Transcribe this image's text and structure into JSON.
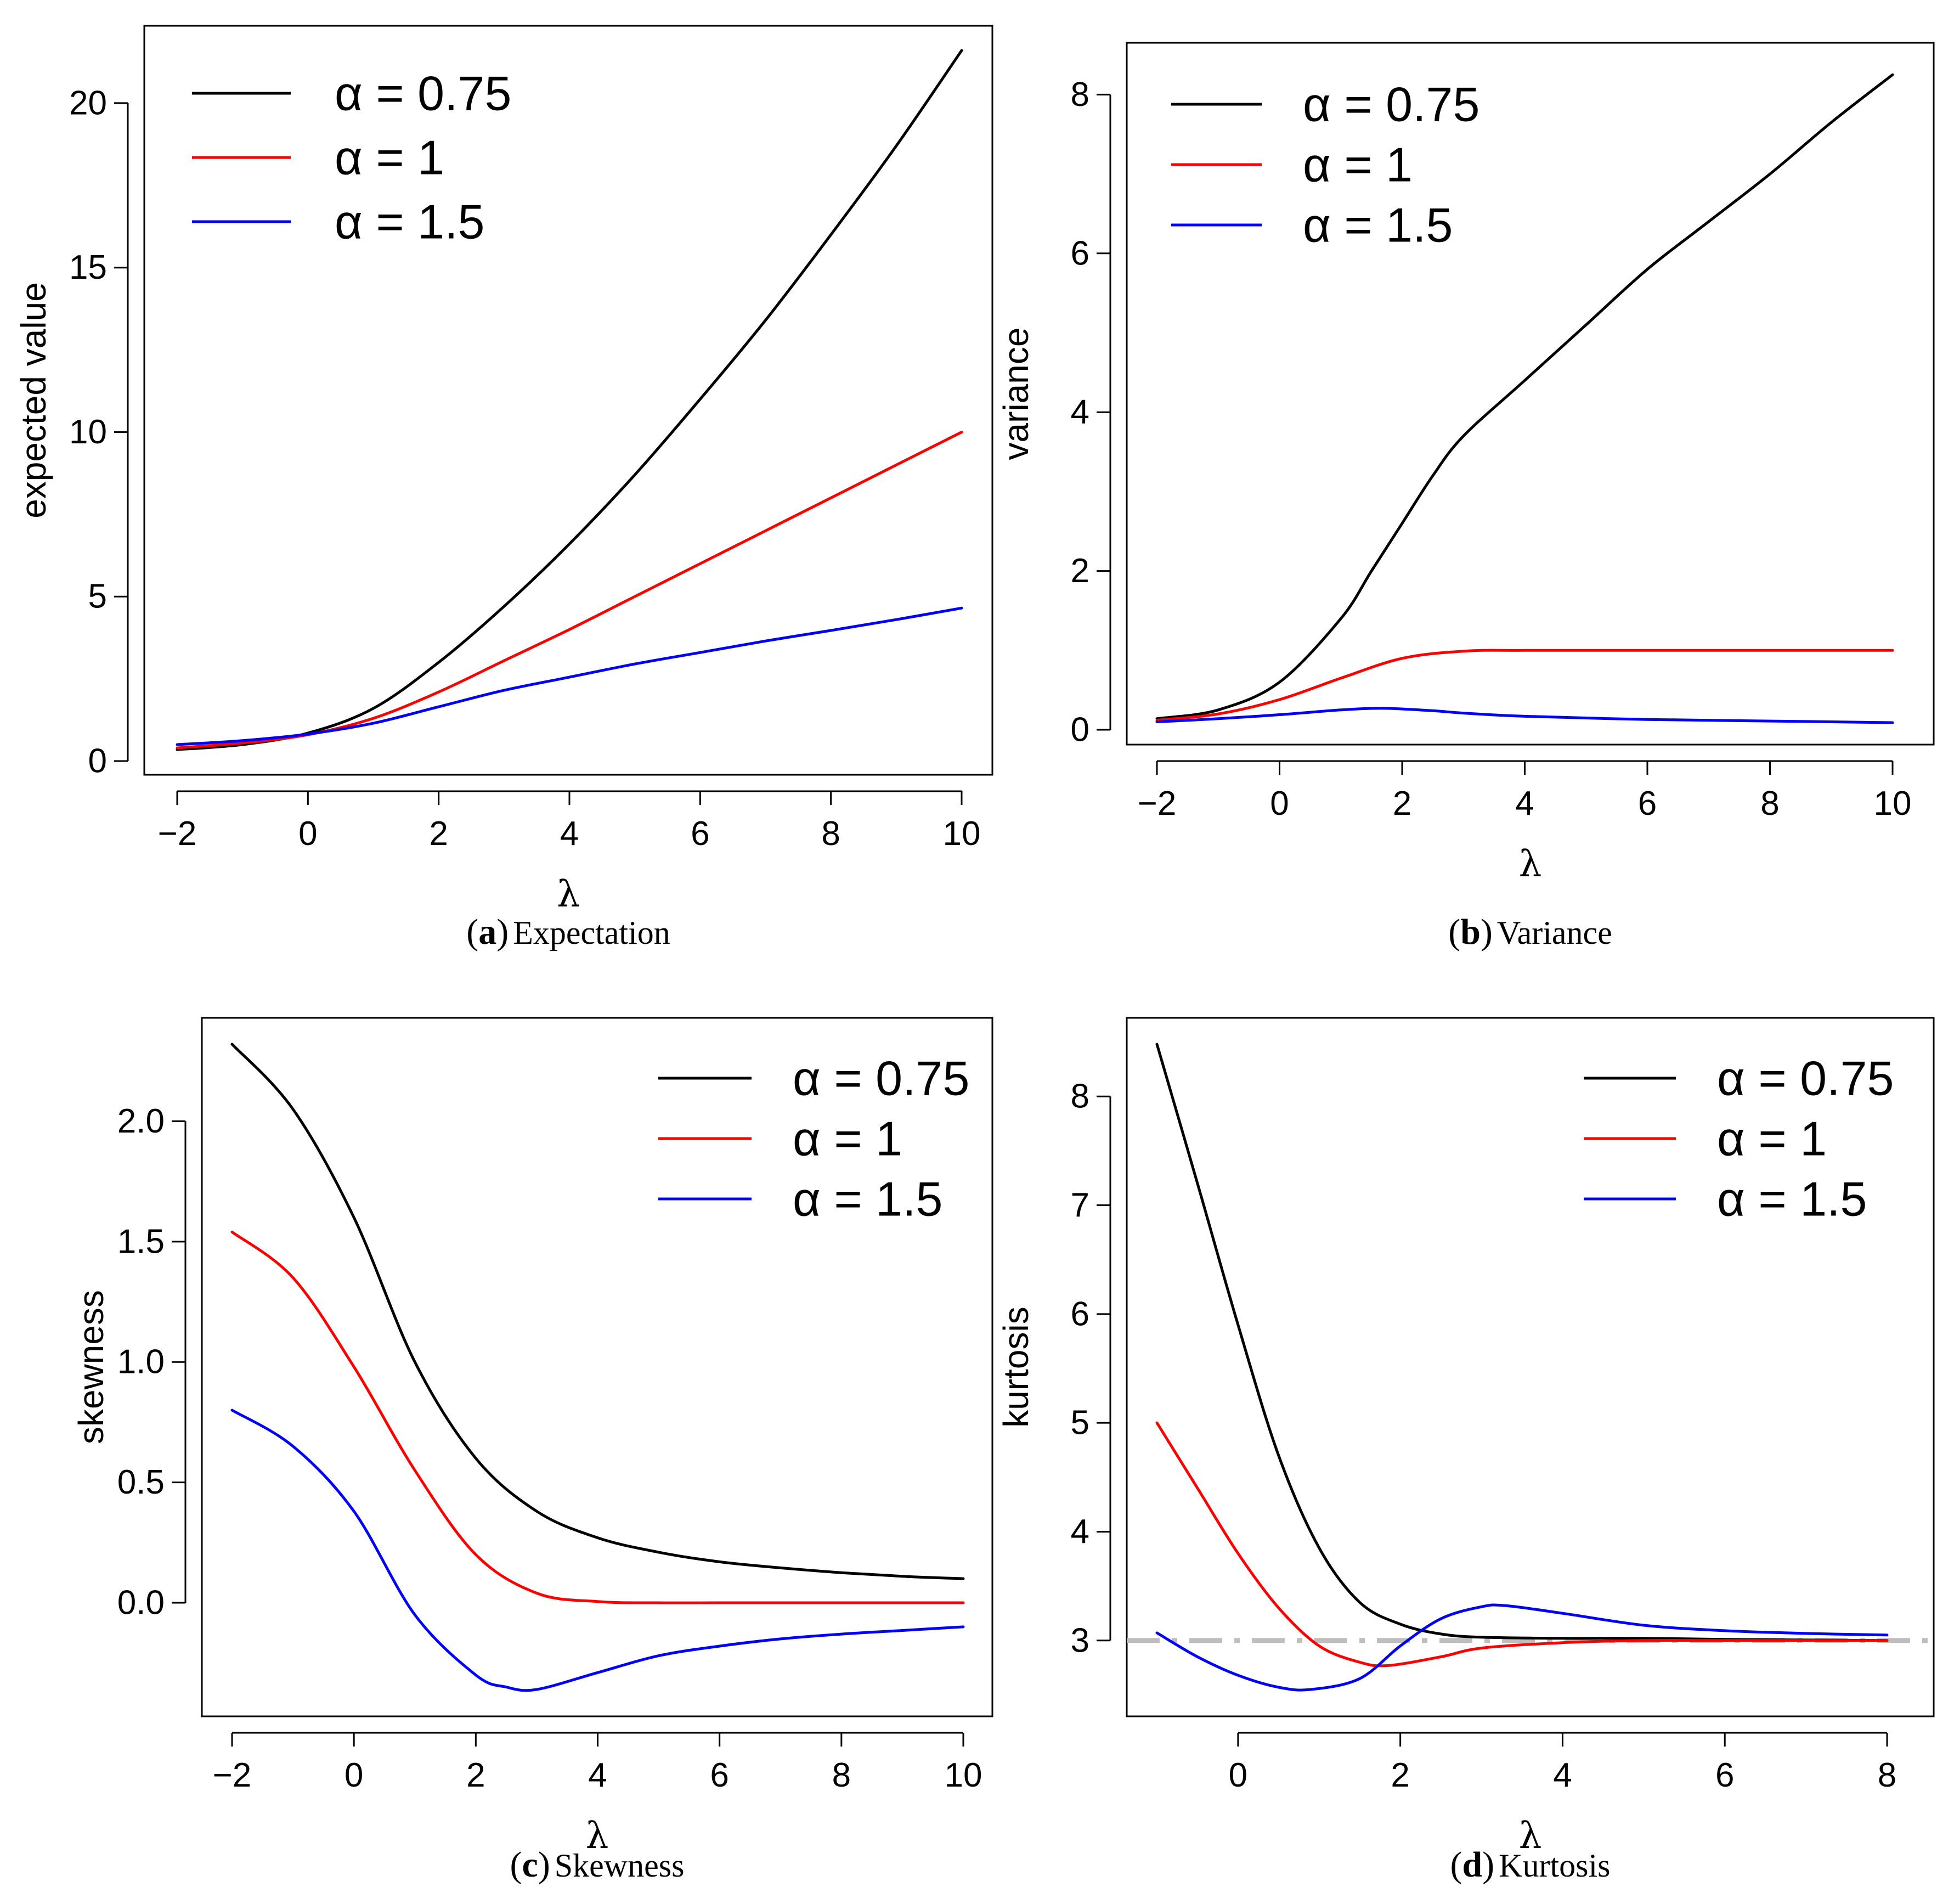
{
  "chart_data": [
    {
      "type": "line",
      "panel": "a",
      "caption": {
        "letter": "a",
        "text": "Expectation"
      },
      "xlabel": "λ",
      "ylabel": "expected value",
      "xlim": [
        -2,
        10
      ],
      "ylim": [
        0,
        21.5
      ],
      "xticks": [
        -2,
        0,
        2,
        4,
        6,
        8,
        10
      ],
      "xtick_labels": [
        "−2",
        "0",
        "2",
        "4",
        "6",
        "8",
        "10"
      ],
      "yticks": [
        0,
        5,
        10,
        15,
        20
      ],
      "ytick_labels": [
        "0",
        "5",
        "10",
        "15",
        "20"
      ],
      "legend": {
        "position": "top-left"
      },
      "reference_line": null,
      "series": [
        {
          "name": "α = 0.75",
          "color": "#000000",
          "x": [
            -2,
            -1,
            0,
            1,
            2,
            3,
            4,
            5,
            6,
            7,
            8,
            9,
            10
          ],
          "y": [
            0.35,
            0.5,
            0.85,
            1.6,
            3.0,
            4.7,
            6.6,
            8.7,
            11.0,
            13.4,
            16.0,
            18.7,
            21.6
          ]
        },
        {
          "name": "α = 1",
          "color": "#ff0000",
          "x": [
            -2,
            -1,
            0,
            1,
            2,
            3,
            4,
            5,
            6,
            7,
            8,
            9,
            10
          ],
          "y": [
            0.4,
            0.55,
            0.8,
            1.3,
            2.1,
            3.05,
            4.0,
            5.0,
            6.0,
            7.0,
            8.0,
            9.0,
            10.0
          ]
        },
        {
          "name": "α = 1.5",
          "color": "#0000ff",
          "x": [
            -2,
            -1,
            0,
            1,
            2,
            3,
            4,
            5,
            6,
            7,
            8,
            9,
            10
          ],
          "y": [
            0.5,
            0.62,
            0.82,
            1.15,
            1.65,
            2.15,
            2.55,
            2.95,
            3.3,
            3.65,
            3.97,
            4.3,
            4.65
          ]
        }
      ]
    },
    {
      "type": "line",
      "panel": "b",
      "caption": {
        "letter": "b",
        "text": "Variance"
      },
      "xlabel": "λ",
      "ylabel": "variance",
      "xlim": [
        -2,
        10
      ],
      "ylim": [
        0,
        8.3
      ],
      "xticks": [
        -2,
        0,
        2,
        4,
        6,
        8,
        10
      ],
      "xtick_labels": [
        "−2",
        "0",
        "2",
        "4",
        "6",
        "8",
        "10"
      ],
      "yticks": [
        0,
        2,
        4,
        6,
        8
      ],
      "ytick_labels": [
        "0",
        "2",
        "4",
        "6",
        "8"
      ],
      "legend": {
        "position": "top-left"
      },
      "reference_line": null,
      "series": [
        {
          "name": "α = 0.75",
          "color": "#000000",
          "x": [
            -2,
            -1,
            0,
            1,
            1.5,
            2,
            2.5,
            3,
            4,
            5,
            6,
            7,
            8,
            9,
            10
          ],
          "y": [
            0.14,
            0.25,
            0.6,
            1.4,
            2.0,
            2.6,
            3.2,
            3.7,
            4.4,
            5.1,
            5.8,
            6.4,
            7.0,
            7.65,
            8.25
          ]
        },
        {
          "name": "α = 1",
          "color": "#ff0000",
          "x": [
            -2,
            -1,
            0,
            1,
            2,
            3,
            4,
            6,
            8,
            10
          ],
          "y": [
            0.12,
            0.2,
            0.38,
            0.65,
            0.9,
            0.99,
            1.0,
            1.0,
            1.0,
            1.0
          ]
        },
        {
          "name": "α = 1.5",
          "color": "#0000ff",
          "x": [
            -2,
            -1,
            0,
            1,
            1.7,
            2.5,
            3,
            4,
            6,
            8,
            10
          ],
          "y": [
            0.1,
            0.14,
            0.19,
            0.25,
            0.27,
            0.24,
            0.21,
            0.17,
            0.13,
            0.11,
            0.09
          ]
        }
      ]
    },
    {
      "type": "line",
      "panel": "c",
      "caption": {
        "letter": "c",
        "text": "Skewness"
      },
      "xlabel": "λ",
      "ylabel": "skewness",
      "xlim": [
        -2,
        10
      ],
      "ylim": [
        -0.36,
        2.32
      ],
      "xticks": [
        -2,
        0,
        2,
        4,
        6,
        8,
        10
      ],
      "xtick_labels": [
        "−2",
        "0",
        "2",
        "4",
        "6",
        "8",
        "10"
      ],
      "yticks": [
        0,
        0.5,
        1,
        1.5,
        2
      ],
      "ytick_labels": [
        "0.0",
        "0.5",
        "1.0",
        "1.5",
        "2.0"
      ],
      "legend": {
        "position": "top-right"
      },
      "reference_line": null,
      "series": [
        {
          "name": "α = 0.75",
          "color": "#000000",
          "x": [
            -2,
            -1,
            0,
            1,
            2,
            3,
            4,
            5,
            6,
            7,
            8,
            9,
            10
          ],
          "y": [
            2.32,
            2.05,
            1.6,
            1.0,
            0.6,
            0.38,
            0.27,
            0.21,
            0.17,
            0.145,
            0.125,
            0.11,
            0.1
          ]
        },
        {
          "name": "α = 1",
          "color": "#ff0000",
          "x": [
            -2,
            -1,
            0,
            1,
            2,
            3,
            4,
            5,
            6,
            8,
            10
          ],
          "y": [
            1.54,
            1.35,
            0.98,
            0.55,
            0.2,
            0.04,
            0.005,
            0.0,
            0.0,
            0.0,
            0.0
          ]
        },
        {
          "name": "α = 1.5",
          "color": "#0000ff",
          "x": [
            -2,
            -1,
            0,
            1,
            2,
            2.5,
            3,
            4,
            5,
            6,
            7,
            8,
            9,
            10
          ],
          "y": [
            0.8,
            0.65,
            0.38,
            -0.05,
            -0.3,
            -0.35,
            -0.36,
            -0.29,
            -0.22,
            -0.18,
            -0.15,
            -0.13,
            -0.115,
            -0.1
          ]
        }
      ]
    },
    {
      "type": "line",
      "panel": "d",
      "caption": {
        "letter": "d",
        "text": "Kurtosis"
      },
      "xlabel": "λ",
      "ylabel": "kurtosis",
      "xlim": [
        -1,
        8
      ],
      "ylim": [
        2.55,
        8.48
      ],
      "xticks": [
        0,
        2,
        4,
        6,
        8
      ],
      "xtick_labels": [
        "0",
        "2",
        "4",
        "6",
        "8"
      ],
      "yticks": [
        3,
        4,
        5,
        6,
        7,
        8
      ],
      "ytick_labels": [
        "3",
        "4",
        "5",
        "6",
        "7",
        "8"
      ],
      "legend": {
        "position": "top-right"
      },
      "reference_line": {
        "y": 3,
        "color": "#bebebe",
        "style": "dash-dot"
      },
      "series": [
        {
          "name": "α = 0.75",
          "color": "#000000",
          "x": [
            -1,
            -0.5,
            0,
            0.5,
            1,
            1.5,
            2,
            2.5,
            3,
            4,
            5,
            6,
            8
          ],
          "y": [
            8.48,
            7.2,
            5.9,
            4.7,
            3.85,
            3.35,
            3.15,
            3.06,
            3.03,
            3.02,
            3.02,
            3.01,
            3.0
          ]
        },
        {
          "name": "α = 1",
          "color": "#ff0000",
          "x": [
            -1,
            -0.5,
            0,
            0.5,
            1,
            1.5,
            1.85,
            2.5,
            3,
            4,
            5,
            6,
            8
          ],
          "y": [
            5.0,
            4.4,
            3.8,
            3.3,
            2.95,
            2.8,
            2.77,
            2.85,
            2.93,
            2.98,
            3.0,
            3.0,
            3.0
          ]
        },
        {
          "name": "α = 1.5",
          "color": "#0000ff",
          "x": [
            -1,
            -0.5,
            0,
            0.5,
            0.9,
            1.5,
            2,
            2.5,
            3,
            3.3,
            4,
            5,
            6,
            7,
            8
          ],
          "y": [
            3.07,
            2.85,
            2.68,
            2.57,
            2.55,
            2.65,
            2.95,
            3.2,
            3.31,
            3.32,
            3.25,
            3.14,
            3.09,
            3.065,
            3.05
          ]
        }
      ]
    }
  ]
}
